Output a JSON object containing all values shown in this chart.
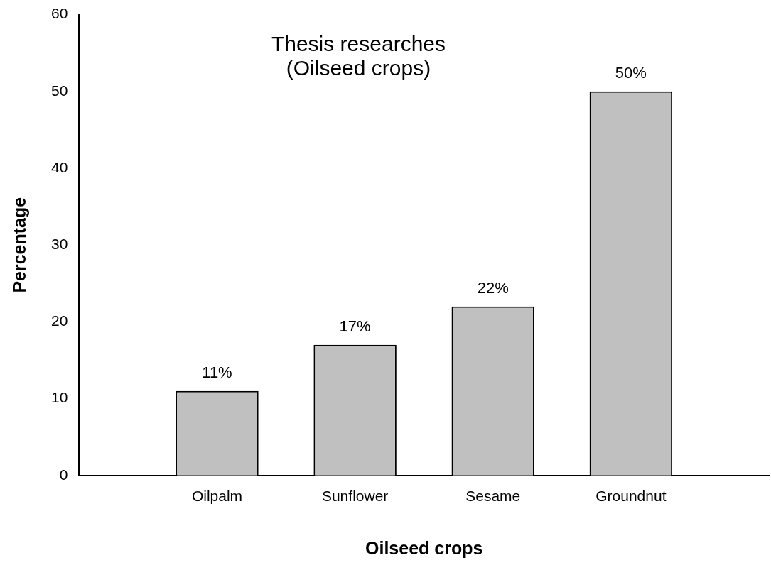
{
  "chart_data": {
    "type": "bar",
    "title": "Thesis researches\n(Oilseed crops)",
    "xlabel": "Oilseed crops",
    "ylabel": "Percentage",
    "categories": [
      "Oilpalm",
      "Sunflower",
      "Sesame",
      "Groundnut"
    ],
    "values": [
      11,
      17,
      22,
      50
    ],
    "color": "#c0c0c0",
    "value_labels": [
      "11%",
      "17%",
      "22%",
      "50%"
    ],
    "ylim": [
      0,
      60
    ],
    "yticks": [
      0,
      10,
      20,
      30,
      40,
      50,
      60
    ],
    "grid": false,
    "legend": false
  }
}
